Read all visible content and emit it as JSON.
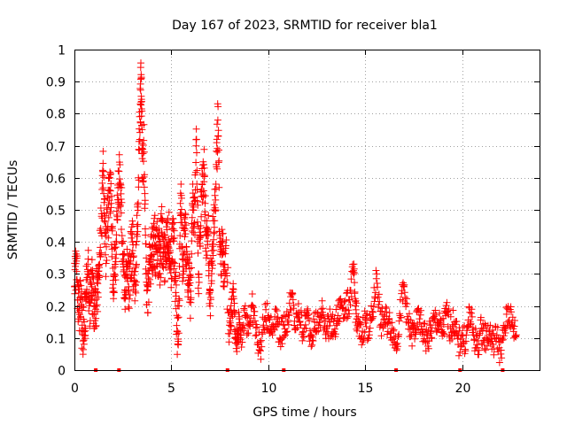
{
  "chart_data": {
    "type": "scatter",
    "title": "Day 167 of 2023, SRMTID for receiver bla1",
    "xlabel": "GPS time / hours",
    "ylabel": "SRMTID / TECUs",
    "xlim": [
      0,
      24
    ],
    "ylim": [
      0,
      1
    ],
    "xticks": [
      0,
      5,
      10,
      15,
      20
    ],
    "xtick_labels": [
      "0",
      "5",
      "10",
      "15",
      "20"
    ],
    "yticks": [
      0,
      0.1,
      0.2,
      0.3,
      0.4,
      0.5,
      0.6,
      0.7,
      0.8,
      0.9,
      1
    ],
    "ytick_labels": [
      "0",
      "0.1",
      "0.2",
      "0.3",
      "0.4",
      "0.5",
      "0.6",
      "0.7",
      "0.8",
      "0.9",
      "1"
    ],
    "grid": true,
    "marker": "+",
    "series": [
      {
        "name": "SRMTID",
        "color": "#ff0000",
        "points": [
          [
            0.0,
            0.26
          ],
          [
            0.1,
            0.34
          ],
          [
            0.2,
            0.18
          ],
          [
            0.3,
            0.22
          ],
          [
            0.4,
            0.14
          ],
          [
            0.5,
            0.12
          ],
          [
            0.6,
            0.24
          ],
          [
            0.7,
            0.3
          ],
          [
            0.8,
            0.21
          ],
          [
            0.9,
            0.26
          ],
          [
            1.0,
            0.2
          ],
          [
            1.1,
            0.19
          ],
          [
            1.2,
            0.27
          ],
          [
            1.3,
            0.33
          ],
          [
            1.4,
            0.48
          ],
          [
            1.5,
            0.62
          ],
          [
            1.6,
            0.36
          ],
          [
            1.7,
            0.44
          ],
          [
            1.8,
            0.56
          ],
          [
            1.9,
            0.52
          ],
          [
            2.0,
            0.28
          ],
          [
            2.1,
            0.33
          ],
          [
            2.2,
            0.47
          ],
          [
            2.3,
            0.62
          ],
          [
            2.4,
            0.55
          ],
          [
            2.5,
            0.36
          ],
          [
            2.6,
            0.25
          ],
          [
            2.7,
            0.3
          ],
          [
            2.8,
            0.26
          ],
          [
            2.9,
            0.34
          ],
          [
            3.0,
            0.4
          ],
          [
            3.1,
            0.28
          ],
          [
            3.2,
            0.33
          ],
          [
            3.3,
            0.6
          ],
          [
            3.4,
            0.83
          ],
          [
            3.45,
            0.91
          ],
          [
            3.5,
            0.66
          ],
          [
            3.6,
            0.68
          ],
          [
            3.7,
            0.3
          ],
          [
            3.8,
            0.26
          ],
          [
            3.9,
            0.33
          ],
          [
            4.0,
            0.36
          ],
          [
            4.1,
            0.42
          ],
          [
            4.2,
            0.37
          ],
          [
            4.3,
            0.39
          ],
          [
            4.4,
            0.33
          ],
          [
            4.5,
            0.43
          ],
          [
            4.6,
            0.37
          ],
          [
            4.7,
            0.35
          ],
          [
            4.8,
            0.46
          ],
          [
            4.9,
            0.4
          ],
          [
            5.0,
            0.34
          ],
          [
            5.1,
            0.44
          ],
          [
            5.2,
            0.28
          ],
          [
            5.3,
            0.12
          ],
          [
            5.4,
            0.2
          ],
          [
            5.5,
            0.58
          ],
          [
            5.6,
            0.3
          ],
          [
            5.7,
            0.44
          ],
          [
            5.8,
            0.37
          ],
          [
            5.9,
            0.28
          ],
          [
            6.0,
            0.22
          ],
          [
            6.1,
            0.5
          ],
          [
            6.2,
            0.46
          ],
          [
            6.3,
            0.72
          ],
          [
            6.4,
            0.3
          ],
          [
            6.5,
            0.43
          ],
          [
            6.6,
            0.58
          ],
          [
            6.7,
            0.63
          ],
          [
            6.8,
            0.35
          ],
          [
            6.9,
            0.44
          ],
          [
            7.0,
            0.2
          ],
          [
            7.1,
            0.34
          ],
          [
            7.2,
            0.5
          ],
          [
            7.3,
            0.58
          ],
          [
            7.4,
            0.78
          ],
          [
            7.5,
            0.42
          ],
          [
            7.6,
            0.36
          ],
          [
            7.7,
            0.33
          ],
          [
            7.8,
            0.38
          ],
          [
            8.0,
            0.14
          ],
          [
            8.1,
            0.18
          ],
          [
            8.2,
            0.23
          ],
          [
            8.3,
            0.12
          ],
          [
            8.4,
            0.08
          ],
          [
            8.5,
            0.16
          ],
          [
            8.6,
            0.11
          ],
          [
            8.8,
            0.17
          ],
          [
            9.0,
            0.14
          ],
          [
            9.2,
            0.2
          ],
          [
            9.4,
            0.11
          ],
          [
            9.6,
            0.06
          ],
          [
            9.8,
            0.16
          ],
          [
            10.0,
            0.17
          ],
          [
            10.2,
            0.12
          ],
          [
            10.4,
            0.19
          ],
          [
            10.6,
            0.1
          ],
          [
            10.8,
            0.14
          ],
          [
            11.0,
            0.15
          ],
          [
            11.2,
            0.24
          ],
          [
            11.4,
            0.13
          ],
          [
            11.6,
            0.18
          ],
          [
            11.8,
            0.12
          ],
          [
            12.0,
            0.17
          ],
          [
            12.2,
            0.11
          ],
          [
            12.4,
            0.15
          ],
          [
            12.6,
            0.14
          ],
          [
            12.8,
            0.18
          ],
          [
            13.0,
            0.13
          ],
          [
            13.2,
            0.15
          ],
          [
            13.4,
            0.12
          ],
          [
            13.6,
            0.17
          ],
          [
            13.8,
            0.21
          ],
          [
            14.0,
            0.19
          ],
          [
            14.2,
            0.22
          ],
          [
            14.4,
            0.31
          ],
          [
            14.5,
            0.2
          ],
          [
            14.6,
            0.14
          ],
          [
            14.8,
            0.1
          ],
          [
            15.0,
            0.16
          ],
          [
            15.2,
            0.12
          ],
          [
            15.4,
            0.18
          ],
          [
            15.6,
            0.3
          ],
          [
            15.8,
            0.14
          ],
          [
            16.0,
            0.16
          ],
          [
            16.2,
            0.15
          ],
          [
            16.4,
            0.13
          ],
          [
            16.6,
            0.08
          ],
          [
            16.8,
            0.17
          ],
          [
            17.0,
            0.26
          ],
          [
            17.2,
            0.15
          ],
          [
            17.4,
            0.11
          ],
          [
            17.6,
            0.13
          ],
          [
            17.8,
            0.16
          ],
          [
            18.0,
            0.12
          ],
          [
            18.2,
            0.09
          ],
          [
            18.4,
            0.12
          ],
          [
            18.6,
            0.16
          ],
          [
            18.8,
            0.14
          ],
          [
            19.0,
            0.12
          ],
          [
            19.2,
            0.18
          ],
          [
            19.4,
            0.13
          ],
          [
            19.6,
            0.15
          ],
          [
            19.8,
            0.08
          ],
          [
            20.0,
            0.11
          ],
          [
            20.2,
            0.09
          ],
          [
            20.4,
            0.18
          ],
          [
            20.6,
            0.11
          ],
          [
            20.8,
            0.07
          ],
          [
            21.0,
            0.13
          ],
          [
            21.2,
            0.1
          ],
          [
            21.4,
            0.12
          ],
          [
            21.6,
            0.08
          ],
          [
            21.8,
            0.11
          ],
          [
            22.0,
            0.05
          ],
          [
            22.2,
            0.13
          ],
          [
            22.4,
            0.19
          ],
          [
            22.6,
            0.14
          ],
          [
            22.8,
            0.11
          ]
        ]
      }
    ],
    "baseline_marker_hours": [
      1.1,
      2.3,
      7.9,
      10.8,
      16.6,
      19.9,
      22.1
    ]
  }
}
